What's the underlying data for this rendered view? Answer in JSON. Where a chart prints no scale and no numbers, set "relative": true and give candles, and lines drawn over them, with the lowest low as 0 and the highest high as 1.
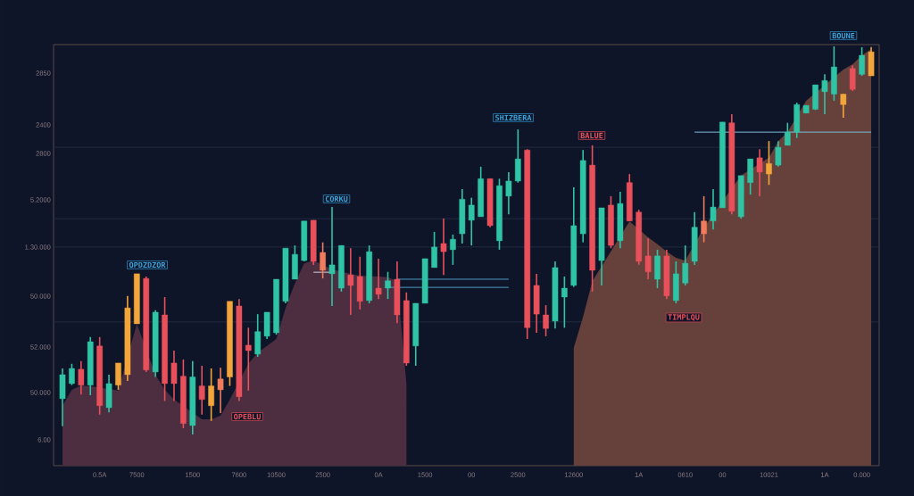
{
  "chart_data": {
    "type": "candlestick",
    "relative": true,
    "categories": [
      null,
      null,
      null,
      null,
      "0.5A",
      null,
      null,
      null,
      "7500",
      null,
      null,
      null,
      null,
      null,
      "1500",
      null,
      null,
      null,
      null,
      "7600",
      null,
      null,
      null,
      "10500",
      null,
      null,
      null,
      null,
      "2500",
      null,
      null,
      null,
      null,
      null,
      "0A",
      null,
      null,
      null,
      null,
      "1500",
      null,
      null,
      null,
      null,
      "00",
      null,
      null,
      null,
      null,
      "2500",
      null,
      null,
      null,
      null,
      null,
      "12600",
      null,
      null,
      null,
      null,
      null,
      null,
      "1A",
      null,
      null,
      null,
      null,
      "0610",
      null,
      null,
      null,
      "00",
      null,
      null,
      null,
      null,
      "10021",
      null,
      null,
      null,
      null,
      null,
      "1A",
      null,
      null,
      null,
      "0.000",
      null
    ],
    "ohlc": [
      [
        0.092,
        0.17,
        0.021,
        0.154
      ],
      [
        0.131,
        0.182,
        0.127,
        0.17
      ],
      [
        0.168,
        0.189,
        0.103,
        0.127
      ],
      [
        0.127,
        0.251,
        0.101,
        0.239
      ],
      [
        0.228,
        0.251,
        0.051,
        0.074
      ],
      [
        0.069,
        0.154,
        0.057,
        0.131
      ],
      [
        0.127,
        0.184,
        0.115,
        0.184
      ],
      [
        0.154,
        0.357,
        0.138,
        0.326
      ],
      [
        0.285,
        0.414,
        0.285,
        0.414
      ],
      [
        0.402,
        0.407,
        0.161,
        0.166
      ],
      [
        0.161,
        0.32,
        0.148,
        0.315
      ],
      [
        0.308,
        0.354,
        0.086,
        0.131
      ],
      [
        0.184,
        0.216,
        0.086,
        0.131
      ],
      [
        0.15,
        0.193,
        0.016,
        0.028
      ],
      [
        0.023,
        0.189,
        0,
        0.148
      ],
      [
        0.125,
        0.177,
        0.051,
        0.09
      ],
      [
        0.074,
        0.17,
        0.035,
        0.125
      ],
      [
        0.143,
        0.172,
        0.055,
        0.115
      ],
      [
        0.148,
        0.343,
        0.125,
        0.343
      ],
      [
        0.331,
        0.349,
        0.086,
        0.097
      ],
      [
        0.23,
        0.275,
        0.113,
        0.216
      ],
      [
        0.207,
        0.31,
        0.2,
        0.265
      ],
      [
        0.253,
        0.315,
        0.246,
        0.315
      ],
      [
        0.262,
        0.4,
        0.257,
        0.4
      ],
      [
        0.343,
        0.48,
        0.338,
        0.48
      ],
      [
        0.4,
        0.487,
        0.4,
        0.464
      ],
      [
        0.448,
        0.55,
        0.446,
        0.55
      ],
      [
        0.552,
        0.552,
        0.437,
        0.446
      ],
      [
        0.469,
        0.495,
        0.402,
        0.423
      ],
      [
        0.414,
        0.586,
        0.331,
        0.437
      ],
      [
        0.377,
        0.487,
        0.368,
        0.487
      ],
      [
        0.411,
        0.48,
        0.308,
        0.384
      ],
      [
        0.407,
        0.458,
        0.322,
        0.343
      ],
      [
        0.345,
        0.487,
        0.338,
        0.471
      ],
      [
        0.377,
        0.453,
        0.349,
        0.361
      ],
      [
        0.377,
        0.419,
        0.349,
        0.396
      ],
      [
        0.4,
        0.446,
        0.287,
        0.308
      ],
      [
        0.345,
        0.366,
        0.177,
        0.184
      ],
      [
        0.228,
        0.338,
        0.177,
        0.338
      ],
      [
        0.338,
        0.453,
        0.338,
        0.453
      ],
      [
        0.43,
        0.522,
        0.43,
        0.483
      ],
      [
        0.492,
        0.556,
        0.411,
        0.471
      ],
      [
        0.476,
        0.515,
        0.437,
        0.503
      ],
      [
        0.517,
        0.632,
        0.492,
        0.606
      ],
      [
        0.552,
        0.61,
        0.487,
        0.591
      ],
      [
        0.561,
        0.69,
        0.561,
        0.659
      ],
      [
        0.659,
        0.659,
        0.534,
        0.538
      ],
      [
        0.499,
        0.659,
        0.476,
        0.641
      ],
      [
        0.614,
        0.676,
        0.567,
        0.653
      ],
      [
        0.653,
        0.786,
        0.649,
        0.71
      ],
      [
        0.733,
        0.735,
        0.246,
        0.275
      ],
      [
        0.384,
        0.414,
        0.262,
        0.31
      ],
      [
        0.308,
        0.333,
        0.253,
        0.273
      ],
      [
        0.292,
        0.446,
        0.273,
        0.43
      ],
      [
        0.354,
        0.407,
        0.275,
        0.377
      ],
      [
        0.384,
        0.637,
        0.38,
        0.538
      ],
      [
        0.517,
        0.733,
        0.495,
        0.706
      ],
      [
        0.694,
        0.745,
        0.368,
        0.423
      ],
      [
        0.448,
        0.584,
        0.384,
        0.584
      ],
      [
        0.591,
        0.614,
        0.48,
        0.487
      ],
      [
        0.499,
        0.625,
        0.48,
        0.595
      ],
      [
        0.649,
        0.671,
        0.55,
        0.55
      ],
      [
        0.573,
        0.579,
        0.437,
        0.446
      ],
      [
        0.46,
        0.505,
        0.4,
        0.419
      ],
      [
        0.4,
        0.476,
        0.377,
        0.46
      ],
      [
        0.46,
        0.476,
        0.349,
        0.357
      ],
      [
        0.345,
        0.446,
        0.338,
        0.414
      ],
      [
        0.39,
        0.487,
        0.384,
        0.441
      ],
      [
        0.446,
        0.573,
        0.437,
        0.534
      ],
      [
        0.55,
        0.614,
        0.495,
        0.517
      ],
      [
        0.55,
        0.632,
        0.528,
        0.586
      ],
      [
        0.584,
        0.805,
        0.584,
        0.805
      ],
      [
        0.803,
        0.825,
        0.567,
        0.575
      ],
      [
        0.561,
        0.667,
        0.556,
        0.667
      ],
      [
        0.649,
        0.71,
        0.618,
        0.71
      ],
      [
        0.713,
        0.735,
        0.614,
        0.676
      ],
      [
        0.671,
        0.756,
        0.643,
        0.698
      ],
      [
        0.694,
        0.756,
        0.69,
        0.74
      ],
      [
        0.745,
        0.803,
        0.745,
        0.779
      ],
      [
        0.779,
        0.855,
        0.764,
        0.85
      ],
      [
        0.828,
        0.848,
        0.828,
        0.848
      ],
      [
        0.838,
        0.901,
        0.836,
        0.901
      ],
      [
        0.883,
        0.928,
        0.825,
        0.912
      ],
      [
        0.877,
        1,
        0.86,
        0.947
      ],
      [
        0.85,
        0.877,
        0.816,
        0.877
      ],
      [
        0.943,
        0.951,
        0.885,
        0.889
      ],
      [
        0.928,
        0.998,
        0.924,
        0.977
      ],
      [
        0.924,
        0.998,
        0.924,
        0.986
      ]
    ],
    "colors": [
      "#2fc4a5",
      "#2fc4a5",
      "#e8505b",
      "#2fc4a5",
      "#e8505b",
      "#2fc4a5",
      "#f2a53a",
      "#f2a53a",
      "#f2a53a",
      "#e8505b",
      "#2fc4a5",
      "#e8505b",
      "#e8505b",
      "#e8505b",
      "#2fc4a5",
      "#e8505b",
      "#f2a53a",
      "#ef7c5c",
      "#f2a53a",
      "#e8505b",
      "#e8505b",
      "#2fc4a5",
      "#2fc4a5",
      "#2fc4a5",
      "#2fc4a5",
      "#2fc4a5",
      "#2fc4a5",
      "#e8505b",
      "#ef7c5c",
      "#2fc4a5",
      "#2fc4a5",
      "#e8505b",
      "#e8505b",
      "#2fc4a5",
      "#e8505b",
      "#2fc4a5",
      "#e8505b",
      "#e8505b",
      "#2fc4a5",
      "#2fc4a5",
      "#2fc4a5",
      "#e8505b",
      "#2fc4a5",
      "#2fc4a5",
      "#2fc4a5",
      "#2fc4a5",
      "#e8505b",
      "#2fc4a5",
      "#2fc4a5",
      "#2fc4a5",
      "#e8505b",
      "#e8505b",
      "#e8505b",
      "#2fc4a5",
      "#2fc4a5",
      "#2fc4a5",
      "#2fc4a5",
      "#e8505b",
      "#2fc4a5",
      "#e8505b",
      "#2fc4a5",
      "#e8505b",
      "#e8505b",
      "#e8505b",
      "#2fc4a5",
      "#e8505b",
      "#2fc4a5",
      "#2fc4a5",
      "#2fc4a5",
      "#ef7c5c",
      "#2fc4a5",
      "#2fc4a5",
      "#e8505b",
      "#2fc4a5",
      "#2fc4a5",
      "#e8505b",
      "#f2a53a",
      "#2fc4a5",
      "#2fc4a5",
      "#2fc4a5",
      "#2fc4a5",
      "#2fc4a5",
      "#2fc4a5",
      "#2fc4a5",
      "#f2a53a",
      "#e8505b",
      "#2fc4a5",
      "#f2a53a"
    ],
    "series": [
      {
        "type": "area",
        "color": "#4d2d40",
        "values": [
          0.074,
          0.115,
          0.126,
          0.124,
          null,
          null,
          0.113,
          null,
          0.285,
          null,
          0.154,
          0.115,
          0.09,
          null,
          null,
          0.039,
          0.039,
          0.048,
          0.09,
          null,
          0.182,
          0.211,
          0.228,
          0.246,
          0.326,
          0.389,
          0.441,
          0.448,
          null,
          0.425,
          null,
          0.414,
          0.409,
          null,
          0.407,
          0.405,
          0.395,
          0.131,
          null,
          null,
          null,
          null,
          null,
          null,
          null,
          null,
          null,
          null,
          null,
          null,
          null,
          null,
          null,
          null,
          null,
          null,
          null,
          null,
          null,
          null,
          null,
          null,
          null,
          null,
          null,
          null,
          null,
          null,
          null,
          null,
          null,
          null,
          null,
          null,
          null,
          null,
          null,
          null,
          null,
          null,
          null,
          null,
          null,
          null,
          null,
          null,
          null,
          null
        ]
      },
      {
        "type": "area",
        "color": "#66403a",
        "values": [
          null,
          null,
          null,
          null,
          null,
          null,
          null,
          null,
          null,
          null,
          null,
          null,
          null,
          null,
          null,
          null,
          null,
          null,
          null,
          null,
          null,
          null,
          null,
          null,
          null,
          null,
          null,
          null,
          null,
          null,
          null,
          null,
          null,
          null,
          null,
          null,
          null,
          null,
          null,
          null,
          null,
          null,
          null,
          null,
          null,
          null,
          null,
          null,
          null,
          null,
          null,
          null,
          null,
          null,
          null,
          0.223,
          0.303,
          0.395,
          null,
          null,
          null,
          0.549,
          null,
          0.508,
          0.49,
          0.471,
          0.455,
          0.448,
          null,
          0.533,
          0.568,
          null,
          null,
          0.667,
          null,
          null,
          0.713,
          0.756,
          0.779,
          null,
          0.86,
          null,
          null,
          null,
          0.94,
          0.954,
          0.977,
          0.993
        ]
      },
      {
        "type": "line",
        "color": "#4e9cc4",
        "values": [
          null,
          null,
          null,
          null,
          null,
          null,
          null,
          null,
          null,
          null,
          null,
          null,
          null,
          null,
          null,
          null,
          null,
          null,
          null,
          null,
          null,
          null,
          null,
          null,
          null,
          null,
          null,
          null,
          null,
          null,
          null,
          null,
          null,
          null,
          null,
          0.379,
          0.379,
          0.379,
          0.379,
          0.379,
          0.379,
          0.379,
          0.379,
          0.379,
          0.379,
          0.379,
          0.379,
          0.379,
          0.379,
          null,
          null,
          null,
          null,
          null,
          null,
          null,
          null,
          null,
          null,
          null,
          null,
          null,
          null,
          null,
          null,
          null,
          null,
          null,
          null,
          null,
          null,
          null,
          null,
          null,
          null,
          null,
          null,
          null,
          null,
          null,
          null,
          null,
          null,
          null,
          null,
          null,
          null,
          null
        ]
      },
      {
        "type": "line",
        "color": "#4e9cc4",
        "values": [
          null,
          null,
          null,
          null,
          null,
          null,
          null,
          null,
          null,
          null,
          null,
          null,
          null,
          null,
          null,
          null,
          null,
          null,
          null,
          null,
          null,
          null,
          null,
          null,
          null,
          null,
          null,
          null,
          null,
          null,
          null,
          null,
          null,
          null,
          null,
          null,
          0.4,
          0.4,
          0.4,
          0.4,
          0.4,
          0.4,
          0.4,
          0.4,
          0.4,
          0.4,
          0.4,
          0.4,
          0.4,
          null,
          null,
          null,
          null,
          null,
          null,
          null,
          null,
          null,
          null,
          null,
          null,
          null,
          null,
          null,
          null,
          null,
          null,
          null,
          null,
          null,
          null,
          null,
          null,
          null,
          null,
          null,
          null,
          null,
          null,
          null,
          null,
          null,
          null,
          null,
          null,
          null,
          null,
          null
        ]
      },
      {
        "type": "line",
        "color": "#79c0dc",
        "values": [
          null,
          null,
          null,
          null,
          null,
          null,
          null,
          null,
          null,
          null,
          null,
          null,
          null,
          null,
          null,
          null,
          null,
          null,
          null,
          null,
          null,
          null,
          null,
          null,
          null,
          null,
          null,
          null,
          null,
          null,
          null,
          null,
          null,
          null,
          null,
          null,
          null,
          null,
          null,
          null,
          null,
          null,
          null,
          null,
          null,
          null,
          null,
          null,
          null,
          null,
          null,
          null,
          null,
          null,
          null,
          null,
          null,
          null,
          null,
          null,
          null,
          null,
          null,
          null,
          null,
          null,
          null,
          null,
          0.779,
          0.779,
          0.779,
          0.779,
          0.779,
          0.779,
          0.779,
          0.779,
          0.779,
          0.779,
          0.779,
          0.779,
          0.779,
          0.779,
          0.779,
          0.779,
          0.779,
          0.779,
          0.779,
          0.779
        ]
      },
      {
        "type": "line",
        "color": "#d6d2de",
        "values": [
          null,
          null,
          null,
          null,
          null,
          null,
          null,
          null,
          null,
          null,
          null,
          null,
          null,
          null,
          null,
          null,
          null,
          null,
          null,
          null,
          null,
          null,
          null,
          null,
          null,
          null,
          null,
          0.418,
          0.418,
          0.418,
          null,
          null,
          null,
          null,
          null,
          null,
          null,
          null,
          null,
          null,
          null,
          null,
          null,
          null,
          null,
          null,
          null,
          null,
          null,
          null,
          null,
          null,
          null,
          null,
          null,
          null,
          null,
          null,
          null,
          null,
          null,
          null,
          null,
          null,
          null,
          null,
          null,
          null,
          null,
          null,
          null,
          null,
          null,
          null,
          null,
          null,
          null,
          null,
          null,
          null,
          null,
          null,
          null,
          null,
          null,
          null,
          null,
          null
        ]
      }
    ],
    "ref_lines": [
      {
        "axis": "y",
        "value": 0.74,
        "color": "#232c44"
      },
      {
        "axis": "y",
        "value": 0.556,
        "color": "#232c44"
      },
      {
        "axis": "y",
        "value": 0.483,
        "color": "#232c44"
      },
      {
        "axis": "y",
        "value": 0.29,
        "color": "#232c44"
      }
    ],
    "annotations": [
      "OPDZDZOR",
      "CORKU",
      "SHIZBERA",
      "BALUE",
      "TIMPLQU",
      "OPEBLU",
      "BOUNE",
      "2850",
      "2400",
      "2800",
      "5.2000",
      "1.30.000",
      "50.000",
      "52.000",
      "50.000",
      "6.00"
    ]
  }
}
